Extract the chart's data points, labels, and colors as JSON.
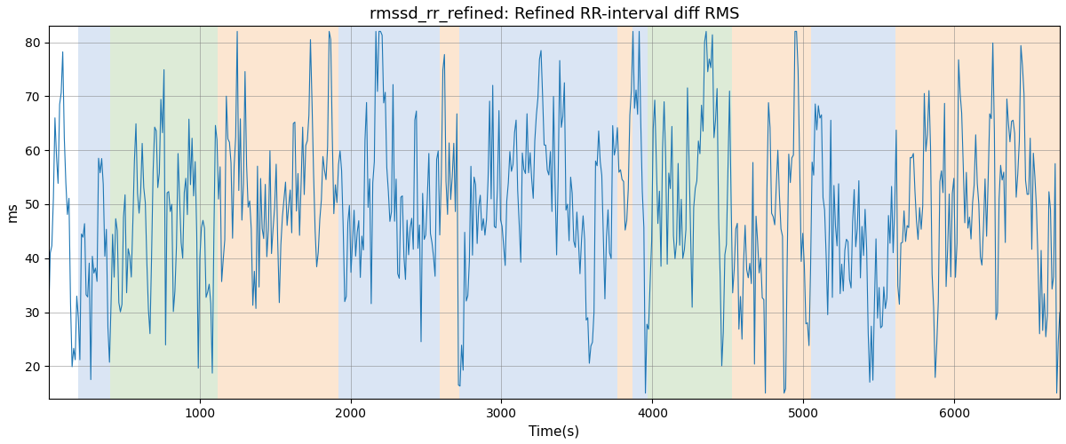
{
  "title": "rmssd_rr_refined: Refined RR-interval diff RMS",
  "xlabel": "Time(s)",
  "ylabel": "ms",
  "xlim": [
    0,
    6700
  ],
  "ylim": [
    14,
    83
  ],
  "yticks": [
    20,
    30,
    40,
    50,
    60,
    70,
    80
  ],
  "xticks": [
    1000,
    2000,
    3000,
    4000,
    5000,
    6000
  ],
  "line_color": "#1f77b4",
  "line_width": 0.8,
  "background_color": "#ffffff",
  "regions": [
    {
      "xstart": 195,
      "xend": 410,
      "color": "#aec6e8",
      "alpha": 0.45
    },
    {
      "xstart": 410,
      "xend": 1120,
      "color": "#b5d4a8",
      "alpha": 0.45
    },
    {
      "xstart": 1120,
      "xend": 1920,
      "color": "#f9c99a",
      "alpha": 0.45
    },
    {
      "xstart": 1920,
      "xend": 2590,
      "color": "#aec6e8",
      "alpha": 0.45
    },
    {
      "xstart": 2590,
      "xend": 2720,
      "color": "#f9c99a",
      "alpha": 0.45
    },
    {
      "xstart": 2720,
      "xend": 3770,
      "color": "#aec6e8",
      "alpha": 0.45
    },
    {
      "xstart": 3770,
      "xend": 3870,
      "color": "#f9c99a",
      "alpha": 0.45
    },
    {
      "xstart": 3870,
      "xend": 3970,
      "color": "#aec6e8",
      "alpha": 0.45
    },
    {
      "xstart": 3970,
      "xend": 4530,
      "color": "#b5d4a8",
      "alpha": 0.45
    },
    {
      "xstart": 4530,
      "xend": 5050,
      "color": "#f9c99a",
      "alpha": 0.45
    },
    {
      "xstart": 5050,
      "xend": 5610,
      "color": "#aec6e8",
      "alpha": 0.45
    },
    {
      "xstart": 5610,
      "xend": 5820,
      "color": "#f9c99a",
      "alpha": 0.45
    },
    {
      "xstart": 5820,
      "xend": 6700,
      "color": "#f9c99a",
      "alpha": 0.45
    }
  ],
  "seed": 42,
  "n_points": 650
}
